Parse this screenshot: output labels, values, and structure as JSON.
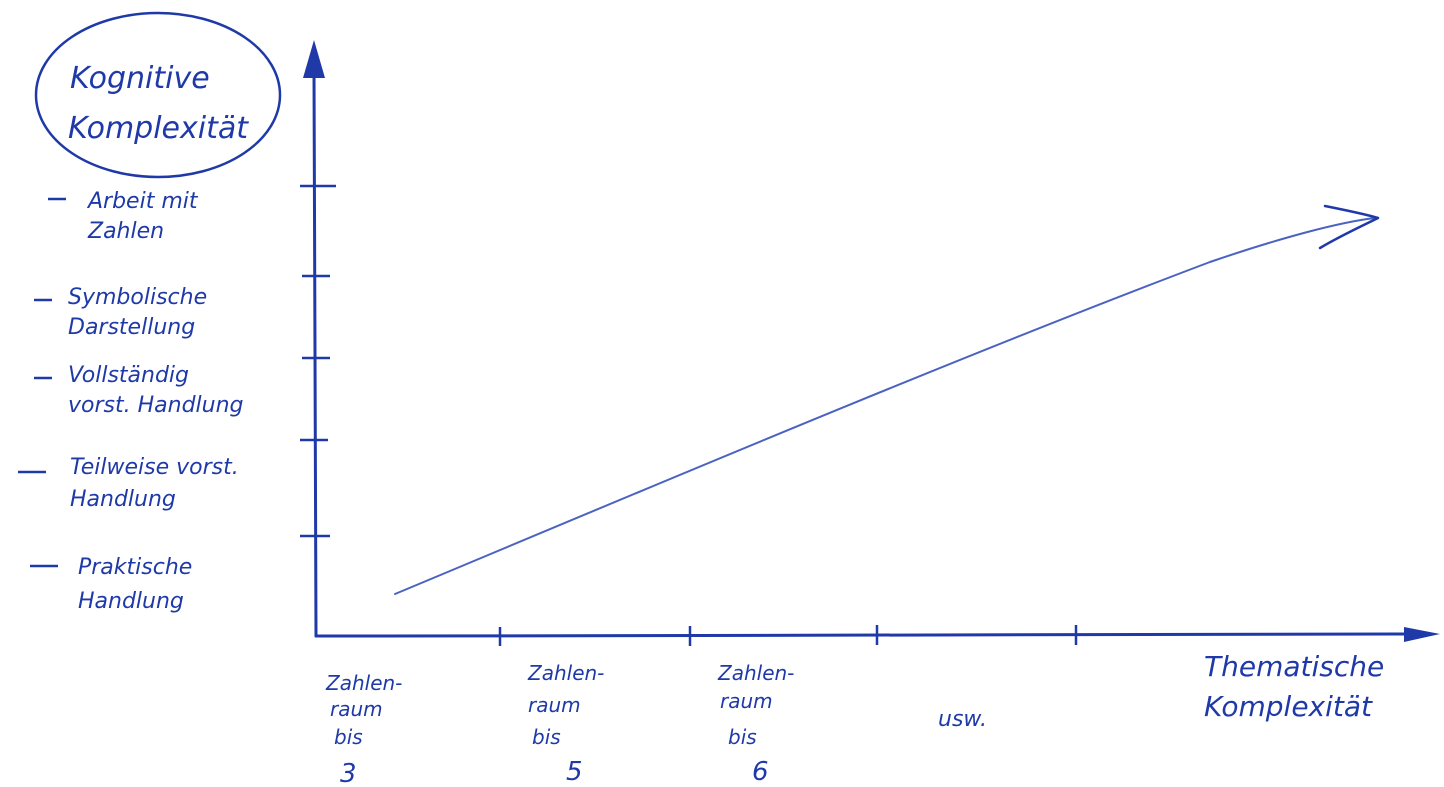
{
  "colors": {
    "ink": "#1f3aa8",
    "background": "#ffffff"
  },
  "y_axis": {
    "title_lines": [
      "Kognitive",
      "Komplexität"
    ],
    "levels": [
      {
        "lines": [
          "Arbeit mit",
          "Zahlen"
        ]
      },
      {
        "lines": [
          "Symbolische",
          "Darstellung"
        ]
      },
      {
        "lines": [
          "Vollständig",
          "vorst. Handlung"
        ]
      },
      {
        "lines": [
          "Teilweise vorst.",
          "Handlung"
        ]
      },
      {
        "lines": [
          "Praktische",
          "Handlung"
        ]
      }
    ]
  },
  "x_axis": {
    "title_lines": [
      "Thematische",
      "Komplexität"
    ],
    "levels": [
      {
        "lines": [
          "Zahlen-",
          "raum",
          "bis",
          "3"
        ]
      },
      {
        "lines": [
          "Zahlen-",
          "raum",
          "bis",
          "5"
        ]
      },
      {
        "lines": [
          "Zahlen-",
          "raum",
          "bis",
          "6"
        ]
      },
      {
        "lines": [
          "usw."
        ]
      }
    ]
  }
}
